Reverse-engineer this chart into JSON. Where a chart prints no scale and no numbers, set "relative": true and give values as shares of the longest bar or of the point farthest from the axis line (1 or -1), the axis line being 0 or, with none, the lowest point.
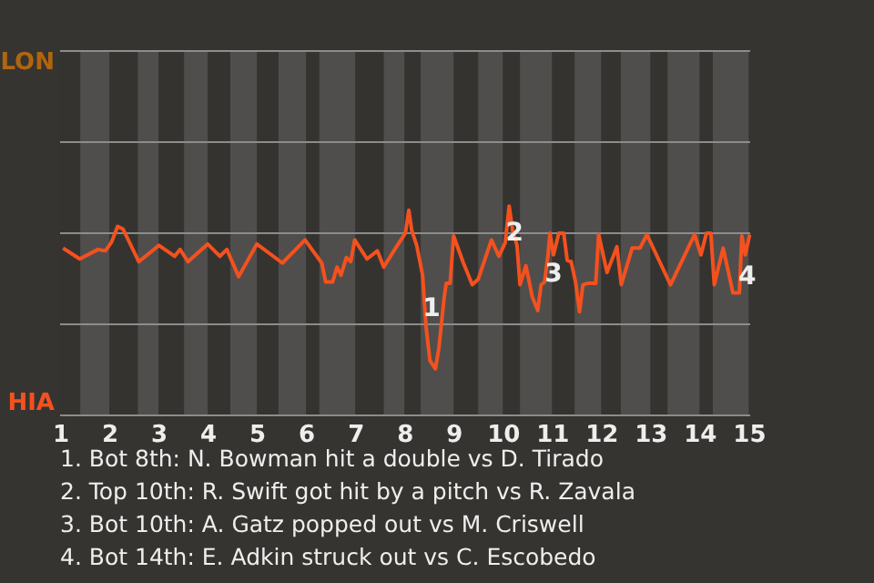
{
  "chart_data": {
    "type": "line",
    "relative": true,
    "x": [
      1.06,
      1.4,
      1.77,
      1.92,
      2.04,
      2.17,
      2.28,
      2.6,
      3.01,
      3.33,
      3.44,
      3.6,
      4.0,
      4.25,
      4.39,
      4.63,
      5.0,
      5.52,
      5.98,
      6.32,
      6.4,
      6.54,
      6.63,
      6.71,
      6.82,
      6.91,
      6.99,
      7.24,
      7.45,
      7.58,
      7.82,
      8.02,
      8.09,
      8.15,
      8.25,
      8.37,
      8.44,
      8.52,
      8.63,
      8.7,
      8.81,
      8.85,
      8.93,
      9.0,
      9.2,
      9.38,
      9.5,
      9.77,
      9.92,
      10.05,
      10.13,
      10.2,
      10.29,
      10.35,
      10.47,
      10.6,
      10.71,
      10.78,
      10.85,
      10.92,
      10.96,
      11.03,
      11.14,
      11.24,
      11.31,
      11.39,
      11.48,
      11.56,
      11.63,
      11.72,
      11.89,
      11.95,
      12.12,
      12.32,
      12.41,
      12.63,
      12.79,
      12.93,
      13.41,
      13.9,
      14.03,
      14.14,
      14.23,
      14.3,
      14.48,
      14.68,
      14.81,
      14.86,
      14.93,
      15.02
    ],
    "series": [
      {
        "color": "#f4511e",
        "values": [
          -0.11,
          -0.19,
          -0.12,
          -0.13,
          -0.07,
          0.05,
          0.03,
          -0.21,
          -0.09,
          -0.17,
          -0.12,
          -0.21,
          -0.08,
          -0.17,
          -0.12,
          -0.32,
          -0.08,
          -0.22,
          -0.05,
          -0.22,
          -0.36,
          -0.36,
          -0.25,
          -0.31,
          -0.18,
          -0.21,
          -0.05,
          -0.19,
          -0.13,
          -0.25,
          -0.11,
          0,
          0.17,
          0.02,
          -0.09,
          -0.31,
          -0.69,
          -0.94,
          -1,
          -0.85,
          -0.47,
          -0.37,
          -0.37,
          -0.02,
          -0.22,
          -0.38,
          -0.34,
          -0.05,
          -0.17,
          -0.07,
          0.2,
          0.02,
          -0.09,
          -0.38,
          -0.24,
          -0.47,
          -0.57,
          -0.38,
          -0.36,
          -0.16,
          0,
          -0.16,
          0,
          0,
          -0.2,
          -0.21,
          -0.36,
          -0.58,
          -0.38,
          -0.37,
          -0.37,
          -0.01,
          -0.29,
          -0.1,
          -0.38,
          -0.11,
          -0.11,
          -0.01,
          -0.38,
          -0.01,
          -0.16,
          0,
          0,
          -0.38,
          -0.11,
          -0.44,
          -0.44,
          -0.02,
          -0.16,
          -0.01
        ]
      }
    ],
    "xlim": [
      1,
      15.03
    ],
    "xticks": [
      1,
      2,
      3,
      4,
      5,
      6,
      7,
      8,
      9,
      10,
      11,
      12,
      13,
      14,
      15
    ],
    "tick_labels": "x",
    "ref_lines": [
      {
        "axis": "y",
        "value": 1.344,
        "color": "#8c8c8c"
      },
      {
        "axis": "y",
        "value": 0.672,
        "color": "#8c8c8c"
      },
      {
        "axis": "y",
        "value": 0,
        "color": "#8c8c8c"
      },
      {
        "axis": "y",
        "value": -0.672,
        "color": "#8c8c8c"
      },
      {
        "axis": "y",
        "value": -1.344,
        "color": "#8c8c8c"
      }
    ],
    "bands": [
      {
        "axis": "x",
        "from": 1.41,
        "to": 2.0,
        "color": "#4f4e4c"
      },
      {
        "axis": "x",
        "from": 2.58,
        "to": 3.0,
        "color": "#4f4e4c"
      },
      {
        "axis": "x",
        "from": 3.52,
        "to": 4.0,
        "color": "#4f4e4c"
      },
      {
        "axis": "x",
        "from": 4.46,
        "to": 5.0,
        "color": "#4f4e4c"
      },
      {
        "axis": "x",
        "from": 5.44,
        "to": 6.0,
        "color": "#4f4e4c"
      },
      {
        "axis": "x",
        "from": 6.27,
        "to": 7.0,
        "color": "#4f4e4c"
      },
      {
        "axis": "x",
        "from": 7.58,
        "to": 8.0,
        "color": "#4f4e4c"
      },
      {
        "axis": "x",
        "from": 8.33,
        "to": 9.0,
        "color": "#4f4e4c"
      },
      {
        "axis": "x",
        "from": 9.5,
        "to": 10.0,
        "color": "#4f4e4c"
      },
      {
        "axis": "x",
        "from": 10.35,
        "to": 11.0,
        "color": "#4f4e4c"
      },
      {
        "axis": "x",
        "from": 11.46,
        "to": 12.0,
        "color": "#4f4e4c"
      },
      {
        "axis": "x",
        "from": 12.4,
        "to": 13.0,
        "color": "#4f4e4c"
      },
      {
        "axis": "x",
        "from": 13.35,
        "to": 14.0,
        "color": "#4f4e4c"
      },
      {
        "axis": "x",
        "from": 14.27,
        "to": 15.0,
        "color": "#4f4e4c"
      }
    ],
    "annotations": [
      "LON",
      "HIA",
      {
        "text": "1",
        "x": 8.55,
        "y": -0.56
      },
      {
        "text": "2",
        "x": 10.24,
        "y": 0
      },
      {
        "text": "3",
        "x": 11.03,
        "y": -0.3
      },
      {
        "text": "4",
        "x": 14.97,
        "y": -0.32
      },
      "1. Bot 8th: N. Bowman hit a double vs D. Tirado",
      "2. Top 10th: R. Swift got hit by a pitch vs R. Zavala",
      "3. Bot 10th: A. Gatz popped out vs M. Criswell",
      "4. Bot 14th: E. Adkin struck out vs C. Escobedo"
    ],
    "line_style": "solid",
    "marker": "none"
  }
}
